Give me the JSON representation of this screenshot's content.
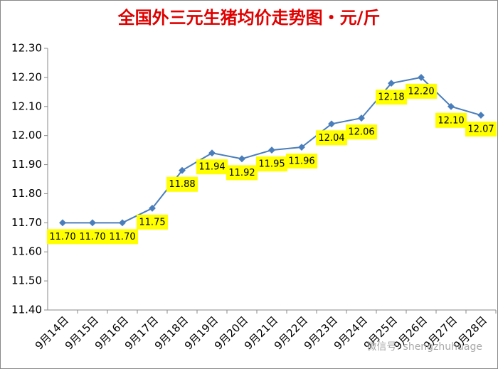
{
  "chart_data": {
    "type": "line",
    "title": "全国外三元生猪均价走势图・元/斤",
    "categories": [
      "9月14日",
      "9月15日",
      "9月16日",
      "9月17日",
      "9月18日",
      "9月19日",
      "9月20日",
      "9月21日",
      "9月22日",
      "9月23日",
      "9月24日",
      "9月25日",
      "9月26日",
      "9月27日",
      "9月28日"
    ],
    "series": [
      {
        "name": "外三元生猪均价",
        "color": "#4a7ebb",
        "values": [
          11.7,
          11.7,
          11.7,
          11.75,
          11.88,
          11.94,
          11.92,
          11.95,
          11.96,
          12.04,
          12.06,
          12.18,
          12.2,
          12.1,
          12.07
        ],
        "value_labels": [
          "11.70",
          "11.70",
          "11.70",
          "11.75",
          "11.88",
          "11.94",
          "11.92",
          "11.95",
          "11.96",
          "12.04",
          "12.06",
          "12.18",
          "12.20",
          "12.10",
          "12.07"
        ]
      }
    ],
    "ylim": [
      11.4,
      12.3
    ],
    "yticks": [
      {
        "value": 11.4,
        "label": "11.40"
      },
      {
        "value": 11.5,
        "label": "11.50"
      },
      {
        "value": 11.6,
        "label": "11.60"
      },
      {
        "value": 11.7,
        "label": "11.70"
      },
      {
        "value": 11.8,
        "label": "11.80"
      },
      {
        "value": 11.9,
        "label": "11.90"
      },
      {
        "value": 12.0,
        "label": "12.00"
      },
      {
        "value": 12.1,
        "label": "12.10"
      },
      {
        "value": 12.2,
        "label": "12.20"
      },
      {
        "value": 12.3,
        "label": "12.30"
      }
    ],
    "grid": false,
    "watermark": "微信号: shengzhuhuage"
  }
}
